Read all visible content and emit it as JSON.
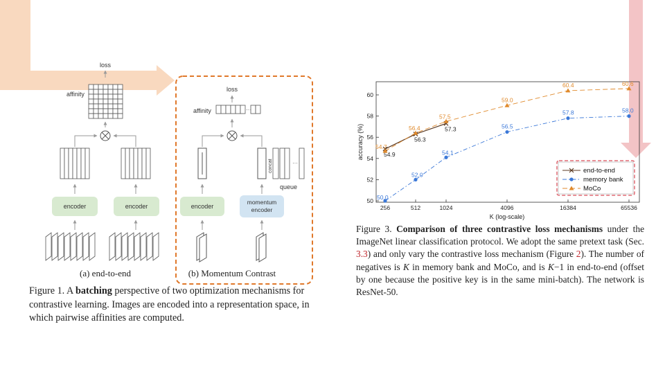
{
  "figure1": {
    "loss_label": "loss",
    "affinity_label": "affinity",
    "encoder_label": "encoder",
    "momentum_encoder_label": [
      "momentum",
      "encoder"
    ],
    "concat_label": "concat",
    "queue_label": "queue",
    "subcaption_a": "(a) end-to-end",
    "subcaption_b": "(b) Momentum Contrast",
    "caption": {
      "prefix": "Figure 1. A",
      "bold": "batching",
      "rest": "perspective of two optimization mechanisms for contrastive learning. Images are encoded into a representation space, in which pairwise affinities are computed."
    },
    "colors": {
      "encoder_box": "#d8ead0",
      "momentum_box": "#d2e4f2",
      "dashed_border": "#e0782a",
      "left_arrow": "#f9d9bf",
      "right_arrow": "#f3c4c6"
    }
  },
  "figure3": {
    "caption": {
      "prefix": "Figure 3.",
      "bold": "Comparison of three contrastive loss mechanisms",
      "part1": "under the ImageNet linear classification protocol. We adopt the same pretext task (Sec.",
      "ref1": "3.3",
      "part2": ") and only vary the contrastive loss mechanism (Figure",
      "ref2": "2",
      "part3": "). The number of negatives is",
      "k1": "K",
      "part4": "in memory bank and MoCo, and is",
      "k2": "K",
      "part5": "−1 in end-to-end (offset by one because the positive key is in the same mini-batch). The network is ResNet-50."
    }
  },
  "chart_data": {
    "type": "line",
    "xlabel": "K (log-scale)",
    "ylabel": "accuracy (%)",
    "x_scale": "log2",
    "x_ticks": [
      256,
      512,
      1024,
      4096,
      16384,
      65536
    ],
    "y_ticks": [
      50,
      52,
      54,
      56,
      58,
      60
    ],
    "ylim": [
      50,
      61
    ],
    "grid": false,
    "legend_position": "lower-right",
    "series": [
      {
        "name": "end-to-end",
        "marker": "x",
        "line": "solid",
        "color": "#5b3a22",
        "x": [
          256,
          512,
          1024
        ],
        "y": [
          54.9,
          56.3,
          57.3
        ],
        "labels": [
          "54.9",
          "56.3",
          "57.3"
        ]
      },
      {
        "name": "memory bank",
        "marker": "circle",
        "line": "dashdot",
        "color": "#3b78d8",
        "x": [
          256,
          512,
          1024,
          4096,
          16384,
          65536
        ],
        "y": [
          50.0,
          52.0,
          54.1,
          56.5,
          57.8,
          58.0
        ],
        "labels": [
          "50.0",
          "52.0",
          "54.1",
          "56.5",
          "57.8",
          "58.0"
        ]
      },
      {
        "name": "MoCo",
        "marker": "triangle",
        "line": "dashed",
        "color": "#e08a2c",
        "x": [
          256,
          512,
          1024,
          4096,
          16384,
          65536
        ],
        "y": [
          54.7,
          56.4,
          57.5,
          59.0,
          60.4,
          60.6
        ],
        "labels": [
          "54.7",
          "56.4",
          "57.5",
          "59.0",
          "60.4",
          "60.6"
        ]
      }
    ]
  }
}
